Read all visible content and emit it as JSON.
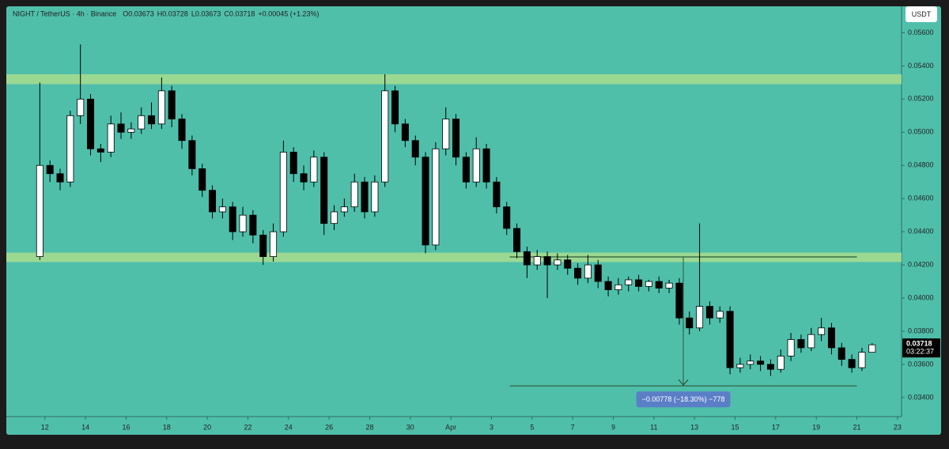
{
  "chart_data": {
    "type": "candlestick",
    "header": [
      "NIGHT / TetherUS · 4h · Binance",
      "O0.03673",
      "H0.03728",
      "L0.03673",
      "C0.03718",
      "+0.00045 (+1.23%)"
    ],
    "currency": "USDT",
    "last_price_label": "0.03718",
    "countdown": "03:22:37",
    "background": "#4fbfaa",
    "up_color": "#ffffff",
    "down_color": "#000000",
    "zone_color": "#a8dc8e",
    "xlim": [
      10.1,
      54.2
    ],
    "ylim": [
      0.03285,
      0.0575
    ],
    "xticks": [
      12,
      14,
      16,
      18,
      20,
      22,
      24,
      26,
      28,
      30,
      {
        "value": 32,
        "label": "Apr"
      },
      {
        "value": 34,
        "label": "3"
      },
      {
        "value": 36,
        "label": "5"
      },
      {
        "value": 38,
        "label": "7"
      },
      {
        "value": 40,
        "label": "9"
      },
      {
        "value": 42,
        "label": "11"
      },
      {
        "value": 44,
        "label": "13"
      },
      {
        "value": 46,
        "label": "15"
      },
      {
        "value": 48,
        "label": "17"
      },
      {
        "value": 50,
        "label": "19"
      },
      {
        "value": 52,
        "label": "21"
      },
      {
        "value": 54,
        "label": "23"
      }
    ],
    "yticks": [
      {
        "value": 0.034,
        "label": "0.03400"
      },
      {
        "value": 0.036,
        "label": "0.03600"
      },
      {
        "value": 0.038,
        "label": "0.03800"
      },
      {
        "value": 0.04,
        "label": "0.04000"
      },
      {
        "value": 0.042,
        "label": "0.04200"
      },
      {
        "value": 0.044,
        "label": "0.04400"
      },
      {
        "value": 0.046,
        "label": "0.04600"
      },
      {
        "value": 0.048,
        "label": "0.04800"
      },
      {
        "value": 0.05,
        "label": "0.05000"
      },
      {
        "value": 0.052,
        "label": "0.05200"
      },
      {
        "value": 0.054,
        "label": "0.05400"
      },
      {
        "value": 0.056,
        "label": "0.05600"
      }
    ],
    "zones": [
      {
        "from": 0.0529,
        "to": 0.0535
      },
      {
        "from": 0.04217,
        "to": 0.04274
      }
    ],
    "levels": [
      {
        "y": 0.04248,
        "x": [
          34.9,
          52.0
        ]
      },
      {
        "y": 0.0347,
        "x": [
          34.9,
          52.0
        ]
      }
    ],
    "measure": {
      "x": 43.45,
      "from": 0.04248,
      "to": 0.0347,
      "label": "−0.00778 (−18.30%) −778"
    },
    "candles": {
      "x": [
        11.75,
        12.25,
        12.75,
        13.25,
        13.75,
        14.25,
        14.75,
        15.25,
        15.75,
        16.25,
        16.75,
        17.25,
        17.75,
        18.25,
        18.75,
        19.25,
        19.75,
        20.25,
        20.75,
        21.25,
        21.75,
        22.25,
        22.75,
        23.25,
        23.75,
        24.25,
        24.75,
        25.25,
        25.75,
        26.25,
        26.75,
        27.25,
        27.75,
        28.25,
        28.75,
        29.25,
        29.75,
        30.25,
        30.75,
        31.25,
        31.75,
        32.25,
        32.75,
        33.25,
        33.75,
        34.25,
        34.75,
        35.25,
        35.75,
        36.25,
        36.75,
        37.25,
        37.75,
        38.25,
        38.75,
        39.25,
        39.75,
        40.25,
        40.75,
        41.25,
        41.75,
        42.25,
        42.75,
        43.25,
        43.75,
        44.25,
        44.75,
        45.25,
        45.75,
        46.25,
        46.75,
        47.25,
        47.75,
        48.25,
        48.75,
        49.25,
        49.75,
        50.25,
        50.75,
        51.25,
        51.75,
        52.25,
        52.75
      ],
      "open": [
        0.0425,
        0.048,
        0.0475,
        0.047,
        0.051,
        0.052,
        0.049,
        0.0488,
        0.0505,
        0.05,
        0.0502,
        0.051,
        0.0505,
        0.0525,
        0.0508,
        0.0495,
        0.0478,
        0.0465,
        0.0452,
        0.0455,
        0.044,
        0.045,
        0.0438,
        0.0425,
        0.044,
        0.0488,
        0.0475,
        0.047,
        0.0485,
        0.0445,
        0.0452,
        0.0455,
        0.047,
        0.0452,
        0.047,
        0.0525,
        0.0505,
        0.0495,
        0.0485,
        0.0432,
        0.049,
        0.0508,
        0.0485,
        0.047,
        0.049,
        0.047,
        0.0455,
        0.0442,
        0.0428,
        0.042,
        0.0425,
        0.042,
        0.0423,
        0.0418,
        0.0412,
        0.042,
        0.041,
        0.0405,
        0.0408,
        0.0411,
        0.0407,
        0.041,
        0.0406,
        0.0409,
        0.0388,
        0.0382,
        0.0395,
        0.0388,
        0.0392,
        0.0358,
        0.036,
        0.0362,
        0.036,
        0.0357,
        0.0365,
        0.0375,
        0.037,
        0.0378,
        0.0382,
        0.037,
        0.0363,
        0.0358,
        0.03673
      ],
      "high": [
        0.053,
        0.0483,
        0.0478,
        0.0513,
        0.0553,
        0.0523,
        0.0493,
        0.051,
        0.0512,
        0.0506,
        0.0515,
        0.0518,
        0.0533,
        0.0528,
        0.0511,
        0.0498,
        0.0481,
        0.0468,
        0.046,
        0.0458,
        0.0455,
        0.0453,
        0.0441,
        0.0445,
        0.0495,
        0.0491,
        0.048,
        0.0489,
        0.0488,
        0.0456,
        0.046,
        0.0475,
        0.0473,
        0.0474,
        0.0535,
        0.0528,
        0.0508,
        0.0498,
        0.0488,
        0.0494,
        0.0515,
        0.0511,
        0.0488,
        0.0497,
        0.0493,
        0.0473,
        0.0458,
        0.0445,
        0.0431,
        0.0429,
        0.0428,
        0.0427,
        0.0426,
        0.0421,
        0.0426,
        0.0423,
        0.0413,
        0.0412,
        0.0413,
        0.0414,
        0.0411,
        0.0413,
        0.0411,
        0.0412,
        0.0392,
        0.0445,
        0.0398,
        0.0395,
        0.0395,
        0.0364,
        0.0366,
        0.0365,
        0.0363,
        0.0369,
        0.0379,
        0.0378,
        0.0382,
        0.0388,
        0.0385,
        0.0373,
        0.0366,
        0.037,
        0.03728
      ],
      "low": [
        0.0423,
        0.047,
        0.0465,
        0.0467,
        0.0505,
        0.0486,
        0.0482,
        0.0485,
        0.0496,
        0.0496,
        0.0499,
        0.0502,
        0.0502,
        0.0503,
        0.049,
        0.0474,
        0.0461,
        0.0448,
        0.0448,
        0.0435,
        0.0437,
        0.0433,
        0.042,
        0.0422,
        0.0437,
        0.047,
        0.0465,
        0.0467,
        0.0438,
        0.0441,
        0.0449,
        0.0452,
        0.0448,
        0.0449,
        0.0467,
        0.05,
        0.0491,
        0.048,
        0.0427,
        0.0429,
        0.0486,
        0.048,
        0.0466,
        0.0467,
        0.0466,
        0.0451,
        0.0438,
        0.0424,
        0.0412,
        0.0417,
        0.04,
        0.0417,
        0.0414,
        0.0408,
        0.0409,
        0.0406,
        0.0401,
        0.0402,
        0.0404,
        0.0404,
        0.0404,
        0.0403,
        0.0403,
        0.0384,
        0.0378,
        0.038,
        0.0384,
        0.0385,
        0.0354,
        0.0355,
        0.0357,
        0.0356,
        0.0353,
        0.0355,
        0.0362,
        0.0367,
        0.0368,
        0.0374,
        0.0366,
        0.0359,
        0.0355,
        0.0356,
        0.03673
      ],
      "close": [
        0.048,
        0.0475,
        0.047,
        0.051,
        0.052,
        0.049,
        0.0488,
        0.0505,
        0.05,
        0.0502,
        0.051,
        0.0505,
        0.0525,
        0.0508,
        0.0495,
        0.0478,
        0.0465,
        0.0452,
        0.0455,
        0.044,
        0.045,
        0.0438,
        0.0425,
        0.044,
        0.0488,
        0.0475,
        0.047,
        0.0485,
        0.0445,
        0.0452,
        0.0455,
        0.047,
        0.0452,
        0.047,
        0.0525,
        0.0505,
        0.0495,
        0.0485,
        0.0432,
        0.049,
        0.0508,
        0.0485,
        0.047,
        0.049,
        0.047,
        0.0455,
        0.0442,
        0.0428,
        0.042,
        0.0425,
        0.042,
        0.0423,
        0.0418,
        0.0412,
        0.042,
        0.041,
        0.0405,
        0.0408,
        0.0411,
        0.0407,
        0.041,
        0.0406,
        0.0409,
        0.0388,
        0.0382,
        0.0395,
        0.0388,
        0.0392,
        0.0358,
        0.036,
        0.0362,
        0.036,
        0.0357,
        0.0365,
        0.0375,
        0.037,
        0.0378,
        0.0382,
        0.037,
        0.0363,
        0.0358,
        0.03673,
        0.03718
      ]
    }
  }
}
